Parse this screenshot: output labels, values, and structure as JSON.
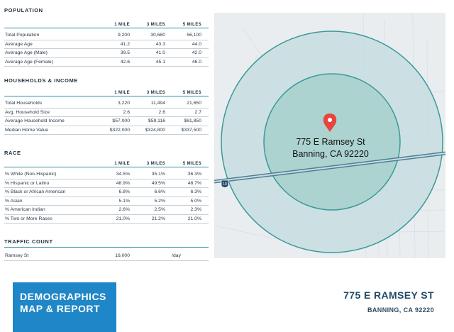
{
  "columns": [
    "1 MILE",
    "3 MILES",
    "5 MILES"
  ],
  "population": {
    "title": "POPULATION",
    "rows": [
      {
        "label": "Total Population",
        "v1": "9,200",
        "v3": "30,680",
        "v5": "56,100"
      },
      {
        "label": "Average Age",
        "v1": "41.2",
        "v3": "43.3",
        "v5": "44.0"
      },
      {
        "label": "Average Age (Male)",
        "v1": "39.5",
        "v3": "41.0",
        "v5": "42.0"
      },
      {
        "label": "Average Age (Female)",
        "v1": "42.6",
        "v3": "45.1",
        "v5": "46.0"
      }
    ]
  },
  "households": {
    "title": "HOUSEHOLDS & INCOME",
    "rows": [
      {
        "label": "Total Households",
        "v1": "3,220",
        "v3": "11,494",
        "v5": "21,650"
      },
      {
        "label": "Avg. Household Size",
        "v1": "2.6",
        "v3": "2.6",
        "v5": "2.7"
      },
      {
        "label": "Average Household Income",
        "v1": "$57,000",
        "v3": "$59,116",
        "v5": "$61,850"
      },
      {
        "label": "Median Home Value",
        "v1": "$322,000",
        "v3": "$324,800",
        "v5": "$337,500"
      }
    ]
  },
  "race": {
    "title": "RACE",
    "rows": [
      {
        "label": "% White (Non-Hispanic)",
        "v1": "34.5%",
        "v3": "35.1%",
        "v5": "36.3%"
      },
      {
        "label": "% Hispanic or Latino",
        "v1": "48.9%",
        "v3": "49.5%",
        "v5": "48.7%"
      },
      {
        "label": "% Black or African American",
        "v1": "6.8%",
        "v3": "6.6%",
        "v5": "6.3%"
      },
      {
        "label": "% Asian",
        "v1": "5.1%",
        "v3": "5.2%",
        "v5": "5.0%"
      },
      {
        "label": "% American Indian",
        "v1": "2.6%",
        "v3": "2.5%",
        "v5": "2.3%"
      },
      {
        "label": "% Two or More Races",
        "v1": "21.0%",
        "v3": "21.2%",
        "v5": "21.0%"
      }
    ]
  },
  "traffic": {
    "title": "TRAFFIC COUNT",
    "street": "Ramsey St",
    "count": "16,000",
    "unit": "/day"
  },
  "map": {
    "label_line1": "775 E Ramsey St",
    "label_line2": "Banning, CA 92220",
    "highway_shield": "10",
    "ring_color": "#3a9a9a",
    "pin_color": "#e8453c"
  },
  "banner": {
    "line1": "DEMOGRAPHICS",
    "line2": "MAP & REPORT",
    "bg_color": "#1f86c7"
  },
  "address": {
    "line1": "775 E RAMSEY ST",
    "line2": "BANNING, CA 92220"
  }
}
